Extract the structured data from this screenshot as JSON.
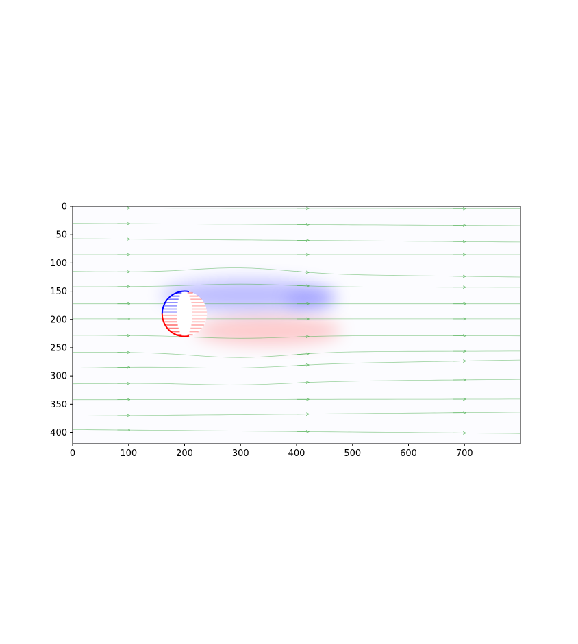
{
  "chart_data": {
    "type": "heatmap",
    "title": "",
    "xlabel": "",
    "ylabel": "",
    "xlim": [
      0,
      800
    ],
    "ylim": [
      420,
      0
    ],
    "x_ticks": [
      0,
      100,
      200,
      300,
      400,
      500,
      600,
      700
    ],
    "y_ticks": [
      0,
      50,
      100,
      150,
      200,
      250,
      300,
      350,
      400
    ],
    "y_inverted": true,
    "grid": false,
    "legend": "none",
    "colormap": "bwr",
    "colors": {
      "positive": "#ff0000",
      "negative": "#0000ff",
      "zero": "#ffffff",
      "streamlines": "#4caf50"
    },
    "obstacle": {
      "shape": "circle",
      "center": [
        200,
        190
      ],
      "radius": 40
    },
    "field_regions": [
      {
        "sign": "negative",
        "x": [
          160,
          470
        ],
        "y": [
          130,
          185
        ],
        "strength": 0.25
      },
      {
        "sign": "positive",
        "x": [
          220,
          480
        ],
        "y": [
          195,
          245
        ],
        "strength": 0.2
      },
      {
        "sign": "negative",
        "x": [
          380,
          470
        ],
        "y": [
          150,
          185
        ],
        "strength": 0.18
      }
    ],
    "streamlines": [
      {
        "start_y": 3,
        "end_y": 4,
        "dip": 0
      },
      {
        "start_y": 30,
        "end_y": 34,
        "dip": 0
      },
      {
        "start_y": 57,
        "end_y": 63,
        "dip": 0
      },
      {
        "start_y": 85,
        "end_y": 85,
        "dip": 0
      },
      {
        "start_y": 115,
        "end_y": 125,
        "dip": -10
      },
      {
        "start_y": 142,
        "end_y": 143,
        "dip": -5
      },
      {
        "start_y": 172,
        "end_y": 172,
        "dip": 0
      },
      {
        "start_y": 199,
        "end_y": 199,
        "dip": 0
      },
      {
        "start_y": 228,
        "end_y": 229,
        "dip": 5
      },
      {
        "start_y": 258,
        "end_y": 256,
        "dip": 10
      },
      {
        "start_y": 286,
        "end_y": 272,
        "dip": 5
      },
      {
        "start_y": 314,
        "end_y": 306,
        "dip": 5
      },
      {
        "start_y": 342,
        "end_y": 341,
        "dip": 0
      },
      {
        "start_y": 371,
        "end_y": 364,
        "dip": 0
      },
      {
        "start_y": 395,
        "end_y": 402,
        "dip": 0
      }
    ]
  }
}
